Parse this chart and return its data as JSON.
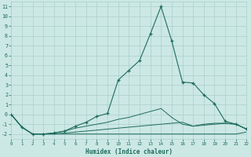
{
  "xlabel": "Humidex (Indice chaleur)",
  "background_color": "#cce8e4",
  "grid_color": "#aacfca",
  "line_color": "#1e6b5e",
  "x_data": [
    0,
    1,
    2,
    3,
    4,
    5,
    6,
    7,
    8,
    9,
    10,
    11,
    12,
    13,
    14,
    15,
    16,
    17,
    18,
    19,
    20,
    21,
    22
  ],
  "line1_y": [
    0.0,
    -1.3,
    -2.0,
    -2.0,
    -2.0,
    -2.0,
    -2.0,
    -2.0,
    -2.0,
    -2.0,
    -2.0,
    -2.0,
    -2.0,
    -2.0,
    -2.0,
    -2.0,
    -2.0,
    -2.0,
    -2.0,
    -2.0,
    -2.0,
    -2.0,
    -1.8
  ],
  "line2_y": [
    0.0,
    -1.3,
    -2.0,
    -2.0,
    -2.0,
    -1.9,
    -1.8,
    -1.7,
    -1.6,
    -1.5,
    -1.4,
    -1.3,
    -1.2,
    -1.1,
    -1.0,
    -0.9,
    -0.8,
    -1.2,
    -1.1,
    -1.0,
    -0.9,
    -1.0,
    -1.5
  ],
  "line3_y": [
    0.0,
    -1.3,
    -2.0,
    -2.0,
    -1.9,
    -1.7,
    -1.4,
    -1.2,
    -1.0,
    -0.8,
    -0.5,
    -0.3,
    0.0,
    0.3,
    0.6,
    -0.3,
    -1.0,
    -1.2,
    -1.0,
    -0.9,
    -0.9,
    -1.0,
    -1.5
  ],
  "line4_y": [
    0.0,
    -1.3,
    -2.0,
    -2.0,
    -1.9,
    -1.7,
    -1.2,
    -0.8,
    -0.2,
    0.1,
    3.5,
    4.5,
    5.5,
    8.2,
    11.0,
    7.5,
    3.3,
    3.2,
    2.0,
    1.1,
    -0.7,
    -1.0,
    -1.5
  ],
  "xlim": [
    0,
    22
  ],
  "ylim": [
    -2.5,
    11.5
  ],
  "yticks": [
    -2,
    -1,
    0,
    1,
    2,
    3,
    4,
    5,
    6,
    7,
    8,
    9,
    10,
    11
  ],
  "xticks": [
    0,
    1,
    2,
    3,
    4,
    5,
    6,
    7,
    8,
    9,
    10,
    11,
    12,
    13,
    14,
    15,
    16,
    17,
    18,
    19,
    20,
    21,
    22
  ]
}
